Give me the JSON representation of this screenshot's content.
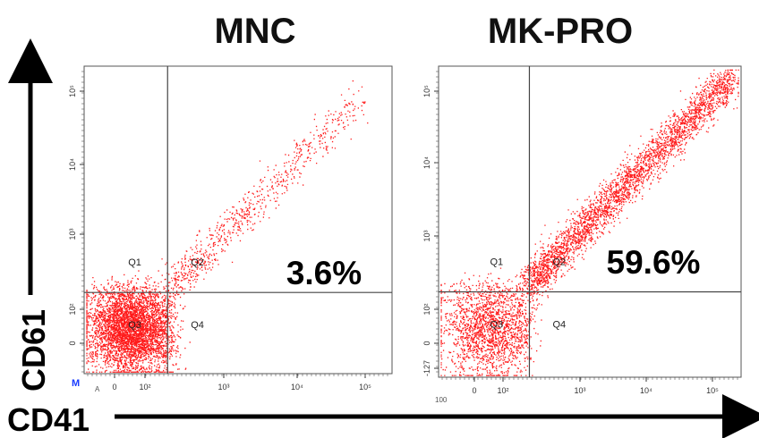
{
  "chart_data": [
    {
      "type": "scatter",
      "title": "MNC",
      "xlabel": "CD41",
      "ylabel": "CD61",
      "x_scale": "biexponential",
      "y_scale": "biexponential",
      "x_ticks": [
        "0",
        "10²",
        "10³",
        "10⁴",
        "10⁵"
      ],
      "y_ticks": [
        "0",
        "10²",
        "10³",
        "10⁴",
        "10⁵"
      ],
      "gates": {
        "x": 150,
        "y": 140
      },
      "quadrants": [
        "Q1",
        "Q2",
        "Q3",
        "Q4"
      ],
      "highlight": {
        "quadrant": "Q2",
        "label": "3.6%",
        "value": 3.6
      },
      "point_color": "#ff1a1a",
      "populations": [
        {
          "name": "main",
          "fraction": 0.86,
          "center": [
            25,
            20
          ],
          "spread": [
            70,
            70
          ]
        },
        {
          "name": "diagonal tail",
          "fraction": 0.14,
          "range": [
            200,
            70000
          ],
          "slope": 1.0
        }
      ],
      "extra_marks": [
        "M",
        "A"
      ]
    },
    {
      "type": "scatter",
      "title": "MK-PRO",
      "xlabel": "CD41",
      "ylabel": "CD61",
      "x_scale": "biexponential",
      "y_scale": "biexponential",
      "x_ticks": [
        "0",
        "10²",
        "10³",
        "10⁴",
        "10⁵"
      ],
      "y_ticks": [
        "-127",
        "0",
        "10²",
        "10³",
        "10⁴",
        "10⁵"
      ],
      "gates": {
        "x": 200,
        "y": 155
      },
      "quadrants": [
        "Q1",
        "Q2",
        "Q3",
        "Q4"
      ],
      "highlight": {
        "quadrant": "Q2",
        "label": "59.6%",
        "value": 59.6
      },
      "point_color": "#ff1a1a",
      "populations": [
        {
          "name": "diagonal",
          "fraction": 0.62,
          "range": [
            200,
            150000
          ],
          "slope": 1.0
        },
        {
          "name": "low cluster",
          "fraction": 0.38,
          "center": [
            40,
            35
          ],
          "spread": [
            80,
            80
          ]
        }
      ],
      "extra_marks": [
        "100"
      ]
    }
  ],
  "axis_labels": {
    "y": "CD61",
    "x": "CD41"
  }
}
